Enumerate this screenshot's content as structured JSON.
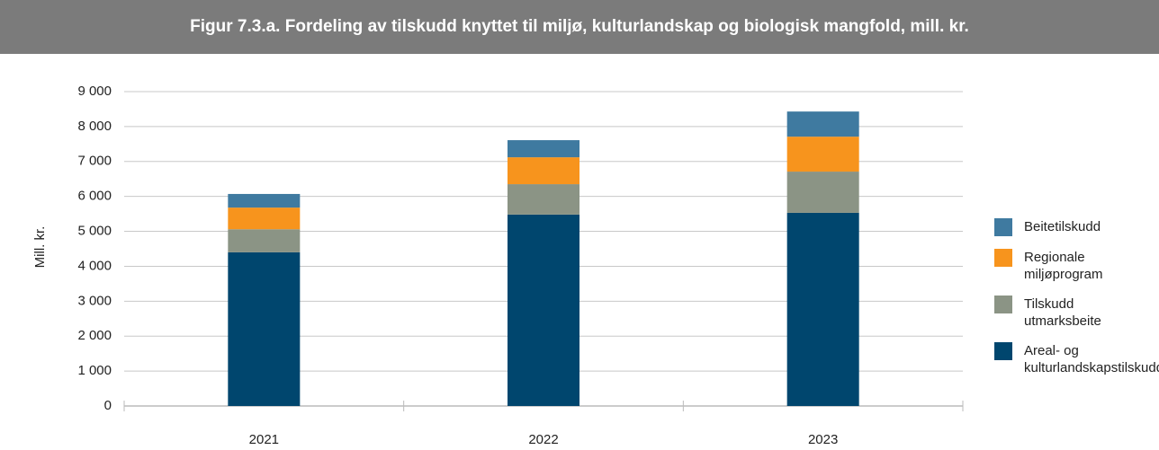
{
  "chart_data": {
    "type": "bar",
    "stacked": true,
    "title": "Figur 7.3.a. Fordeling av tilskudd knyttet til miljø, kulturlandskap og biologisk mangfold, mill. kr.",
    "y_label": "Mill. kr.",
    "categories": [
      "2021",
      "2022",
      "2023"
    ],
    "series": [
      {
        "name": "Areal- og kulturlandskapstilskudd",
        "color": "#00466e",
        "values": [
          4400,
          5480,
          5530
        ]
      },
      {
        "name": "Tilskudd utmarksbeite",
        "color": "#8b9485",
        "values": [
          660,
          870,
          1180
        ]
      },
      {
        "name": "Regionale miljøprogram",
        "color": "#f7941d",
        "values": [
          620,
          770,
          1000
        ]
      },
      {
        "name": "Beitetilskudd",
        "color": "#3f7aa0",
        "values": [
          390,
          490,
          720
        ]
      }
    ],
    "ylim": [
      0,
      9000
    ],
    "yticks": [
      0,
      {
        "value": 1000,
        "label": "1 000"
      },
      {
        "value": 2000,
        "label": "2 000"
      },
      {
        "value": 3000,
        "label": "3 000"
      },
      {
        "value": 4000,
        "label": "4 000"
      },
      {
        "value": 5000,
        "label": "5 000"
      },
      {
        "value": 6000,
        "label": "6 000"
      },
      {
        "value": 7000,
        "label": "7 000"
      },
      {
        "value": 8000,
        "label": "8 000"
      },
      {
        "value": 9000,
        "label": "9 000"
      }
    ],
    "grid": true,
    "legend": "right"
  }
}
